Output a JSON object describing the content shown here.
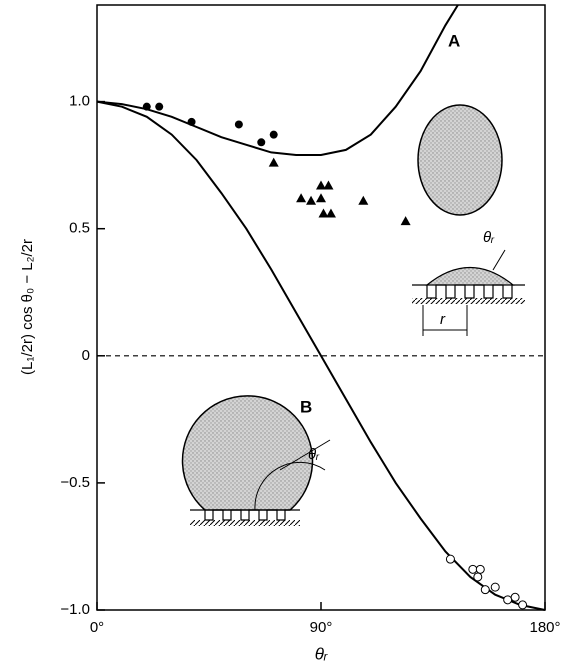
{
  "chart_data": {
    "type": "line",
    "x_label": "θᵣ",
    "y_label": "(L₁/2r) cos θ₀ − L₂/2r",
    "xlim": [
      0,
      180
    ],
    "xticks": [
      {
        "value": 0,
        "label": "0°"
      },
      {
        "value": 90,
        "label": "90°"
      },
      {
        "value": 180,
        "label": "180°"
      }
    ],
    "ylim": [
      -1,
      1.38
    ],
    "yticks": [
      {
        "value": 1,
        "label": "1.0"
      },
      0.5,
      0,
      {
        "value": -0.5,
        "label": "−0.5"
      },
      {
        "value": -1,
        "label": "−1.0"
      }
    ],
    "zero_line": true,
    "series": [
      {
        "name": "A",
        "kind": "curve",
        "color": "#000000",
        "x": [
          0,
          10,
          20,
          30,
          40,
          50,
          60,
          70,
          80,
          90,
          100,
          110,
          120,
          130,
          140,
          145
        ],
        "values": [
          1.0,
          0.99,
          0.97,
          0.94,
          0.9,
          0.86,
          0.83,
          0.8,
          0.79,
          0.79,
          0.81,
          0.87,
          0.98,
          1.12,
          1.3,
          1.38
        ]
      },
      {
        "name": "B",
        "kind": "curve",
        "color": "#000000",
        "x": [
          0,
          10,
          20,
          30,
          40,
          50,
          60,
          70,
          80,
          90,
          100,
          110,
          120,
          130,
          140,
          150,
          160,
          170,
          180
        ],
        "values": [
          1.0,
          0.98,
          0.94,
          0.87,
          0.77,
          0.64,
          0.5,
          0.34,
          0.17,
          0,
          -0.17,
          -0.34,
          -0.5,
          -0.64,
          -0.77,
          -0.87,
          -0.94,
          -0.98,
          -1.0
        ]
      },
      {
        "kind": "filled-circle",
        "color": "#000000",
        "x": [
          20,
          25,
          38,
          57,
          66,
          71
        ],
        "values": [
          0.98,
          0.98,
          0.92,
          0.91,
          0.84,
          0.87
        ]
      },
      {
        "kind": "triangle",
        "color": "#000000",
        "x": [
          71,
          82,
          86,
          90,
          93,
          90,
          91,
          94,
          107,
          124
        ],
        "values": [
          0.76,
          0.62,
          0.61,
          0.67,
          0.67,
          0.62,
          0.56,
          0.56,
          0.61,
          0.53
        ]
      },
      {
        "kind": "open-circle",
        "color": "#000000",
        "x": [
          142,
          151,
          154,
          153,
          156,
          160,
          165,
          168,
          171
        ],
        "values": [
          -0.8,
          -0.84,
          -0.84,
          -0.87,
          -0.92,
          -0.91,
          -0.96,
          -0.95,
          -0.98
        ]
      }
    ],
    "annotations": [
      "A",
      "B",
      "θᵣ",
      "r",
      "θᵣ"
    ]
  }
}
